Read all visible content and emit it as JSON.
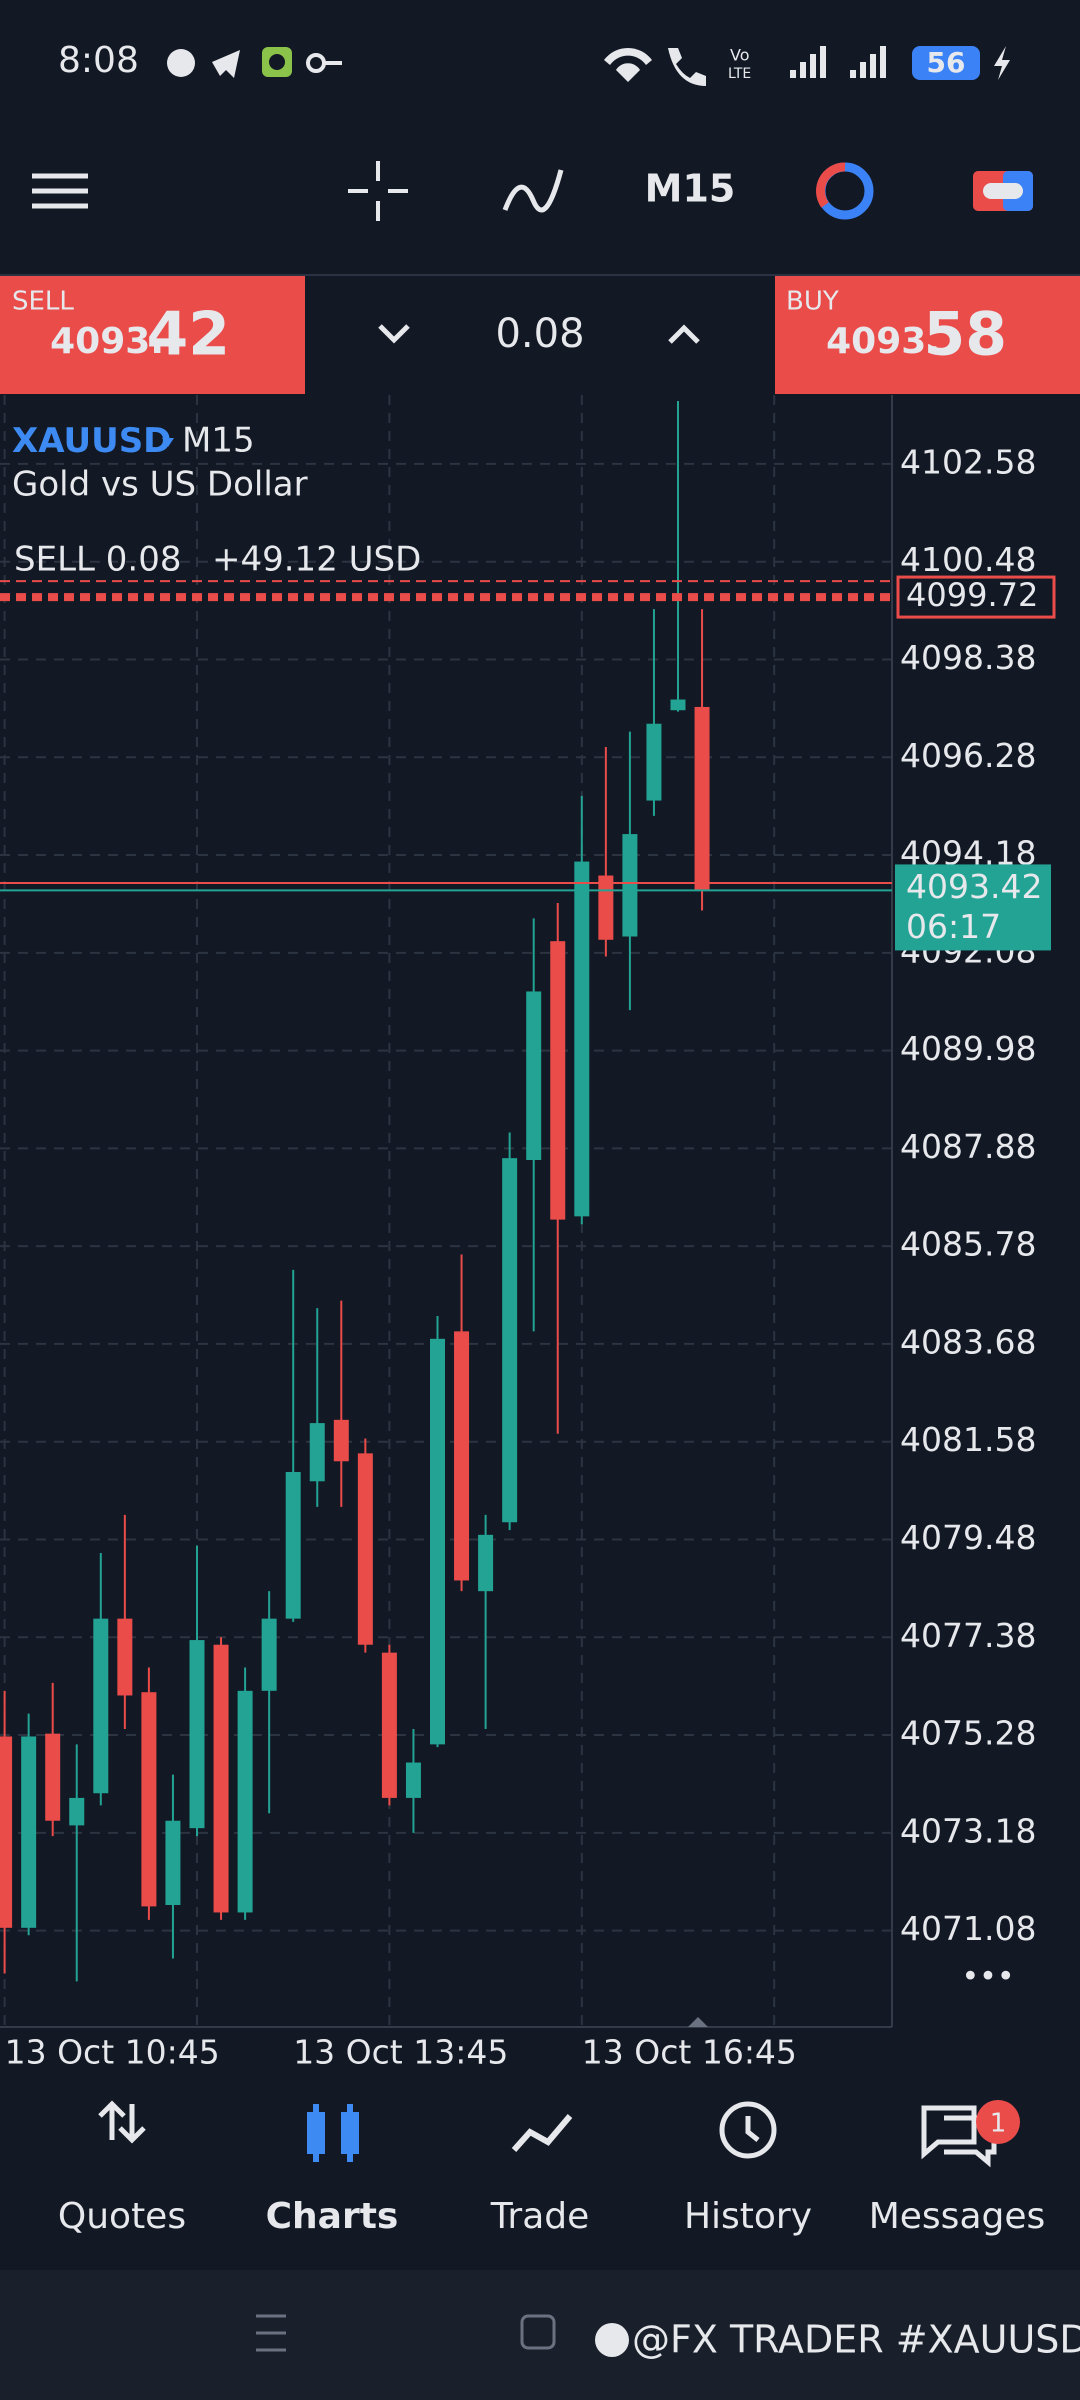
{
  "status_bar": {
    "time": "8:08",
    "battery": "56"
  },
  "toolbar": {
    "timeframe": "M15"
  },
  "trade_panel": {
    "sell_label": "SELL",
    "sell_price_main": "4093.",
    "sell_price_big": "42",
    "lot": "0.08",
    "buy_label": "BUY",
    "buy_price_main": "4093.",
    "buy_price_big": "58"
  },
  "chart_data": {
    "type": "candlestick",
    "symbol": "XAUUSD",
    "timeframe": "M15",
    "description": "Gold vs US Dollar",
    "categories": [
      "13 Oct 10:45",
      null,
      null,
      null,
      null,
      null,
      null,
      null,
      null,
      null,
      null,
      null,
      "13 Oct 13:45",
      null,
      null,
      null,
      null,
      null,
      null,
      null,
      null,
      null,
      null,
      null,
      "13 Oct 16:45",
      null,
      null,
      null,
      null,
      null
    ],
    "open": [
      4075.25,
      4071.14,
      4075.31,
      4073.34,
      4074.03,
      4077.78,
      4076.2,
      4071.63,
      4073.28,
      4077.22,
      4071.47,
      4076.23,
      4077.78,
      4080.73,
      4082.05,
      4081.33,
      4077.05,
      4073.93,
      4075.08,
      4083.95,
      4078.37,
      4079.85,
      4087.63,
      4092.33,
      4086.42,
      4093.74,
      4092.43,
      4095.35,
      4097.29,
      4097.36
    ],
    "high": [
      4076.23,
      4075.74,
      4076.4,
      4075.08,
      4079.19,
      4080.01,
      4076.73,
      4074.43,
      4079.35,
      4077.38,
      4076.73,
      4078.37,
      4085.27,
      4084.45,
      4084.61,
      4081.65,
      4077.22,
      4075.41,
      4084.28,
      4085.6,
      4080.01,
      4088.22,
      4092.82,
      4093.15,
      4095.45,
      4096.5,
      4096.83,
      4099.46,
      4103.93,
      4099.46
    ],
    "low": [
      4070.16,
      4070.98,
      4073.11,
      4069.99,
      4073.77,
      4075.41,
      4071.31,
      4070.48,
      4073.11,
      4071.31,
      4071.31,
      4073.6,
      4077.71,
      4080.18,
      4080.18,
      4077.05,
      4073.77,
      4073.18,
      4075.02,
      4078.37,
      4075.41,
      4079.68,
      4083.95,
      4081.75,
      4086.25,
      4092.0,
      4090.85,
      4095.02,
      4097.26,
      4092.99
    ],
    "close": [
      4071.14,
      4075.25,
      4073.44,
      4073.93,
      4077.78,
      4076.13,
      4071.6,
      4073.44,
      4077.32,
      4071.47,
      4076.23,
      4077.78,
      4080.93,
      4081.98,
      4081.16,
      4077.22,
      4073.93,
      4074.69,
      4083.79,
      4078.6,
      4079.58,
      4087.67,
      4091.25,
      4086.35,
      4094.04,
      4092.36,
      4094.63,
      4097.0,
      4097.52,
      4093.42
    ],
    "up_color": "#22a393",
    "down_color": "#ea4c4a",
    "ylim": [
      4069.01,
      4104.06
    ],
    "yticks": [
      4071.08,
      4073.18,
      4075.28,
      4077.38,
      4079.48,
      4081.58,
      4083.68,
      4085.78,
      4087.88,
      4089.98,
      4092.08,
      4094.18,
      4096.28,
      4098.38,
      4100.48,
      4102.58
    ],
    "grid": true,
    "bid": 4093.42,
    "ask": 4093.58,
    "countdown": "06:17",
    "orders": [
      {
        "label": "SELL 0.08",
        "profit": "+49.12 USD",
        "price": 4099.72
      }
    ]
  },
  "nav": {
    "items": [
      "Quotes",
      "Charts",
      "Trade",
      "History",
      "Messages"
    ],
    "active": 1,
    "badge": "1"
  },
  "watermark": "@FX TRADER #XAUUSD"
}
